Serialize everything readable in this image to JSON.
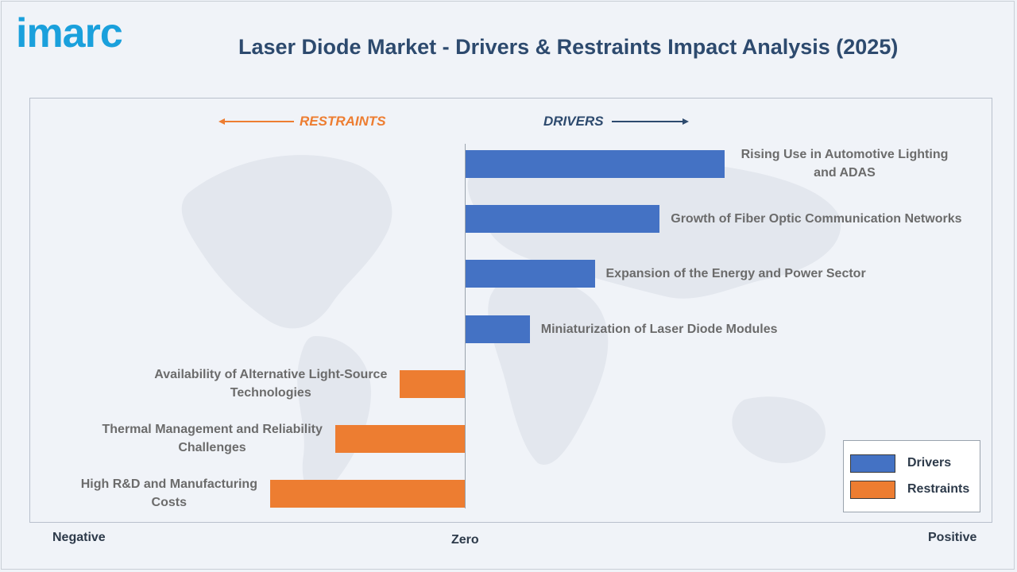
{
  "brand": {
    "logo_text": "imarc",
    "logo_color": "#1aa0dc"
  },
  "header": {
    "title": "Laser Diode Market - Drivers & Restraints Impact Analysis (2025)"
  },
  "direction_labels": {
    "restraints": "RESTRAINTS",
    "drivers": "DRIVERS"
  },
  "colors": {
    "drivers": "#4472c4",
    "restraints": "#ed7d31",
    "title": "#2d4a6e"
  },
  "chart_data": {
    "type": "bar",
    "orientation": "horizontal",
    "title": "Laser Diode Market - Drivers & Restraints Impact Analysis (2025)",
    "xlabel": "",
    "ylabel": "",
    "x_axis_labels": {
      "negative": "Negative",
      "zero": "Zero",
      "positive": "Positive"
    },
    "xlim": [
      -100,
      100
    ],
    "grid": false,
    "legend_position": "bottom-right",
    "categories": [
      "Rising Use in Automotive Lighting and ADAS",
      "Growth of Fiber Optic Communication Networks",
      "Expansion of the Energy and Power Sector",
      "Miniaturization of Laser Diode Modules",
      "Availability of Alternative Light-Source Technologies",
      "Thermal Management and Reliability Challenges",
      "High R&D and Manufacturing Costs"
    ],
    "label_lines": [
      [
        "Rising Use in Automotive Lighting",
        "and ADAS"
      ],
      [
        "Growth of Fiber Optic Communication Networks"
      ],
      [
        "Expansion of the Energy and Power Sector"
      ],
      [
        "Miniaturization of Laser Diode Modules"
      ],
      [
        "Availability of Alternative Light-Source",
        "Technologies"
      ],
      [
        "Thermal Management and Reliability",
        "Challenges"
      ],
      [
        "High R&D and Manufacturing",
        "Costs"
      ]
    ],
    "values": [
      60,
      45,
      30,
      15,
      -15,
      -30,
      -45
    ],
    "series_type": [
      "Drivers",
      "Drivers",
      "Drivers",
      "Drivers",
      "Restraints",
      "Restraints",
      "Restraints"
    ],
    "legend": [
      {
        "name": "Drivers",
        "color": "#4472c4"
      },
      {
        "name": "Restraints",
        "color": "#ed7d31"
      }
    ]
  }
}
